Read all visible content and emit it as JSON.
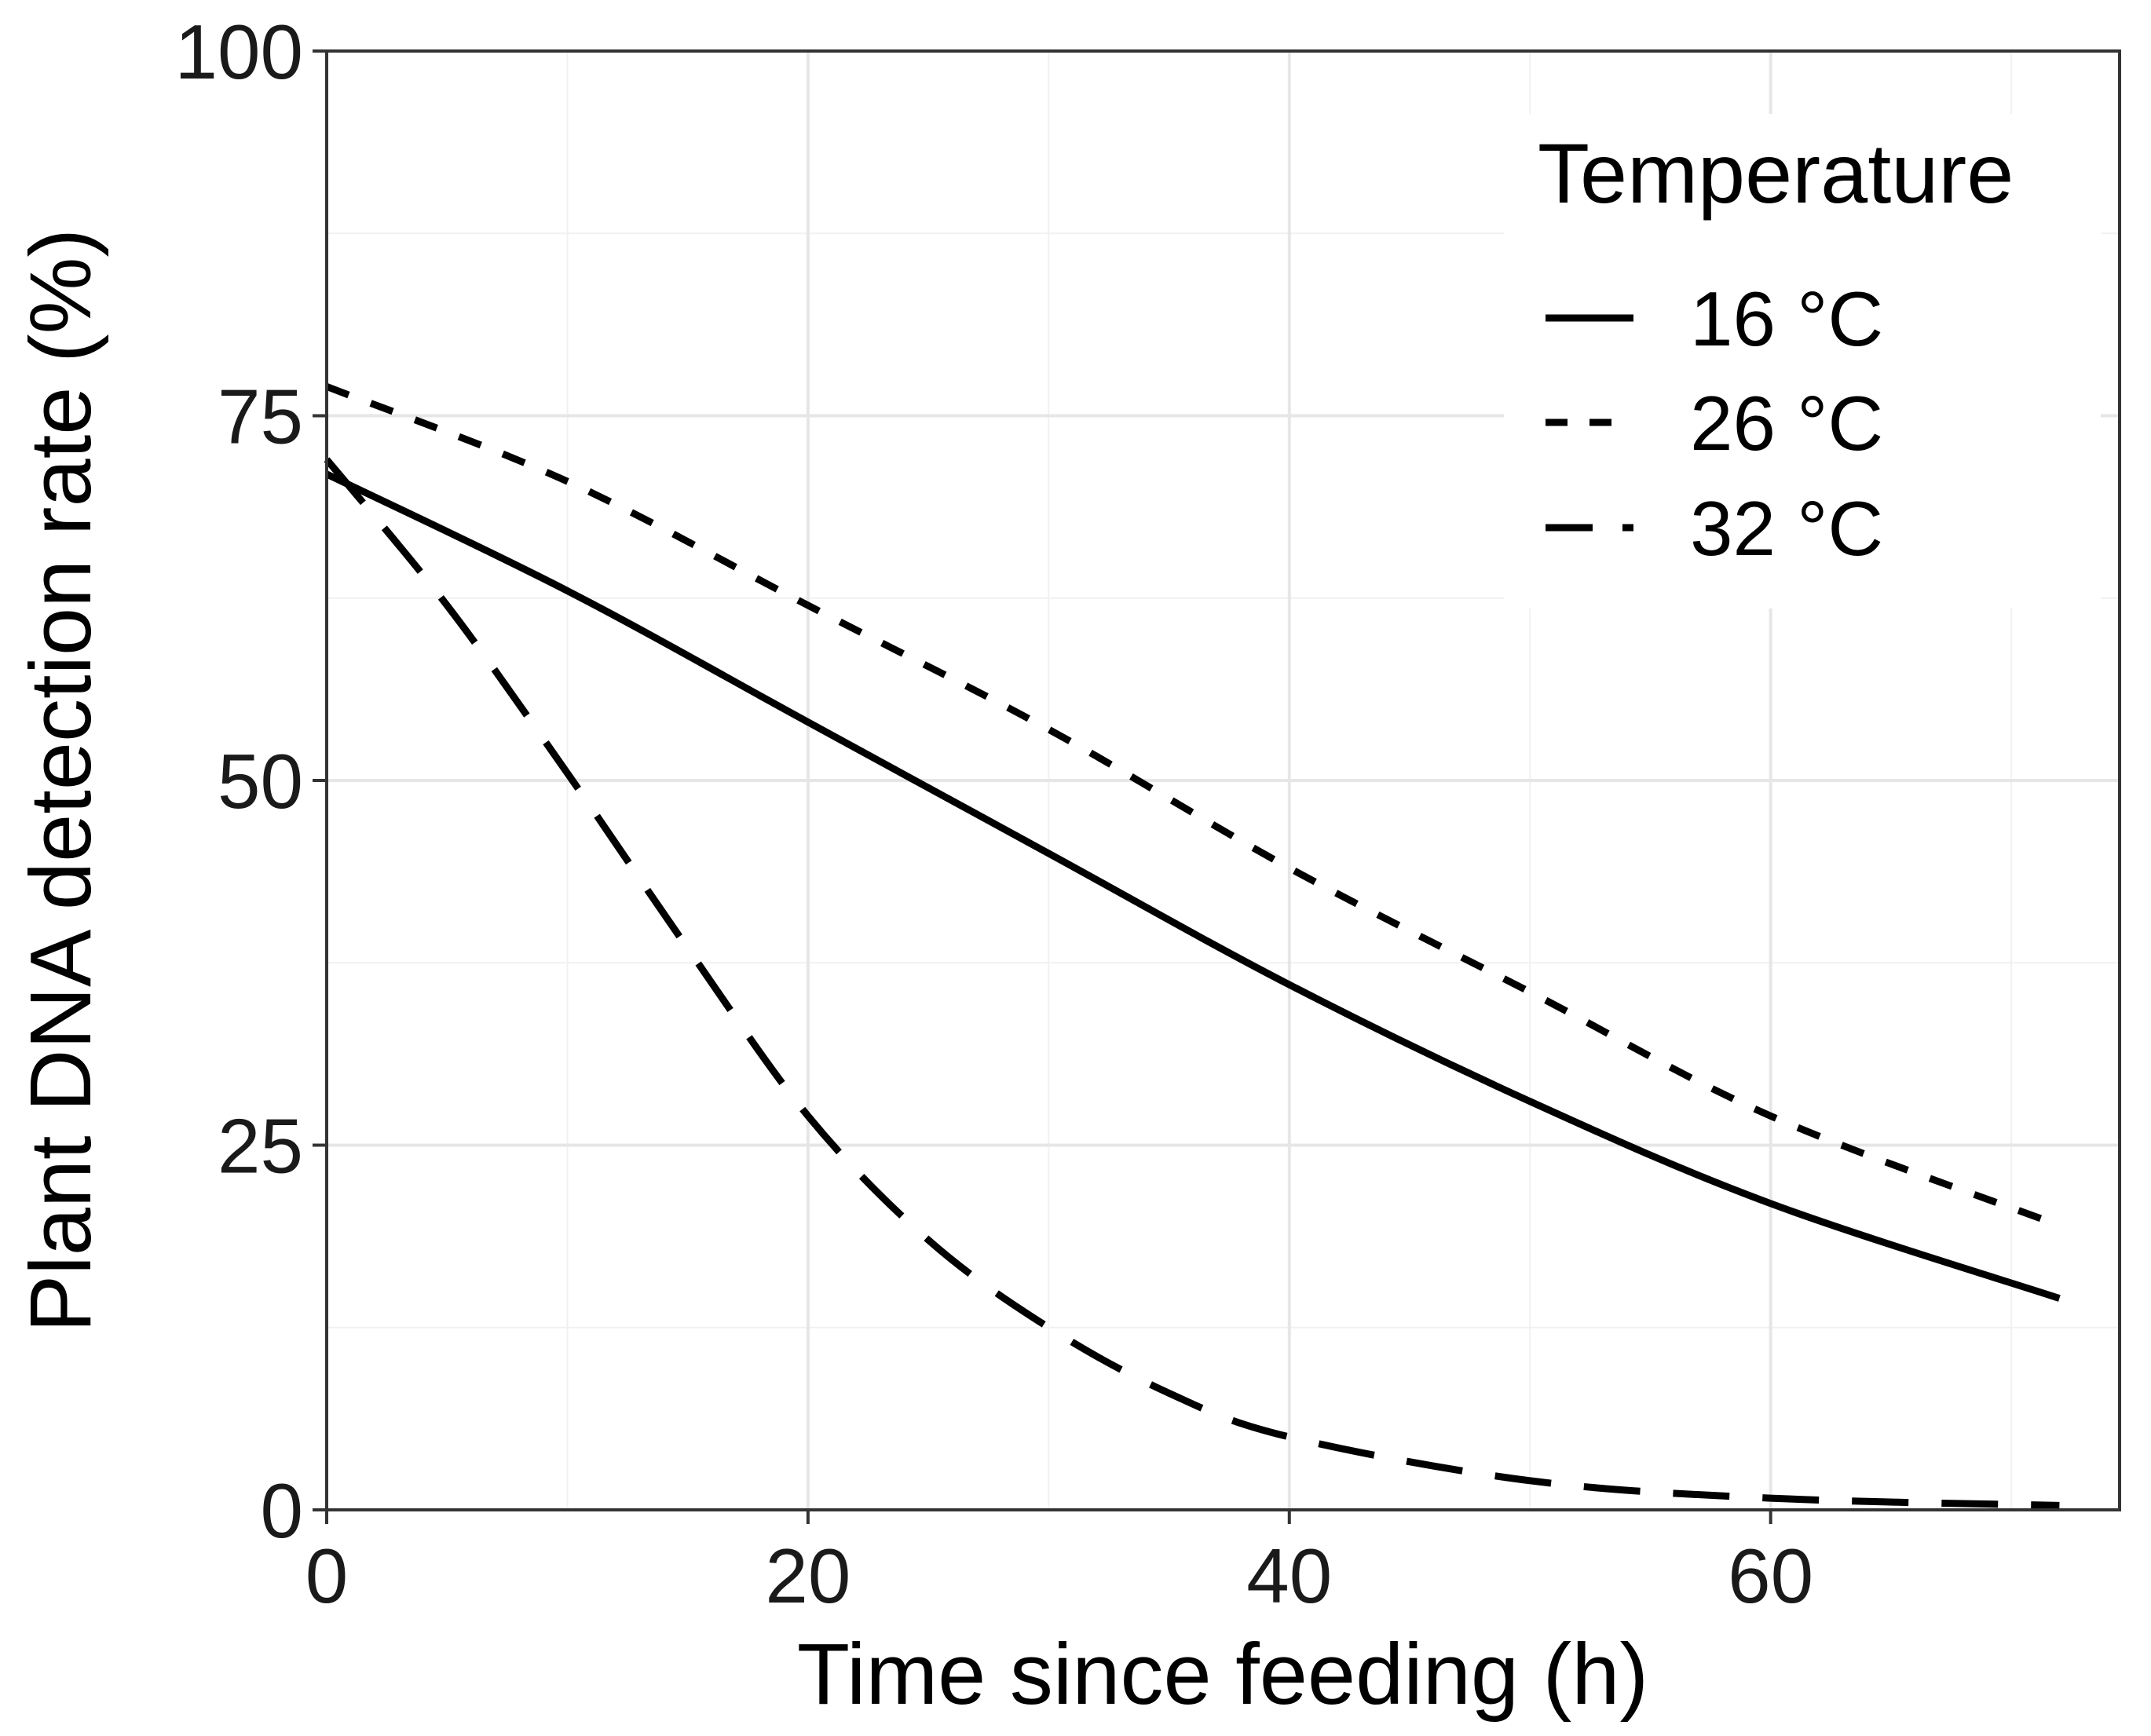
{
  "chart_data": {
    "type": "line",
    "xlabel": "Time since feeding (h)",
    "ylabel": "Plant DNA detection rate (%)",
    "xlim": [
      0,
      74.5
    ],
    "ylim": [
      0,
      100
    ],
    "xticks": [
      0,
      20,
      40,
      60
    ],
    "yticks": [
      0,
      25,
      50,
      75,
      100
    ],
    "x_tick_labels": [
      "0",
      "20",
      "40",
      "60"
    ],
    "y_tick_labels": [
      "0",
      "25",
      "50",
      "75",
      "100"
    ],
    "grid": true,
    "legend_position": "top-right",
    "legend": {
      "title": "Temperature"
    },
    "series": [
      {
        "name": "16 °C",
        "style": "solid",
        "color": "#000000",
        "x": [
          0,
          10,
          20,
          30,
          40,
          50,
          60,
          72
        ],
        "y": [
          71,
          63,
          54,
          45,
          36,
          28,
          21,
          14.5
        ]
      },
      {
        "name": "26 °C",
        "style": "dotted",
        "color": "#000000",
        "x": [
          0,
          10,
          20,
          30,
          40,
          50,
          60,
          72
        ],
        "y": [
          77,
          70.5,
          62,
          53.5,
          44,
          35.5,
          27,
          19.5
        ]
      },
      {
        "name": "32 °C",
        "style": "dashed",
        "color": "#000000",
        "x": [
          0,
          5,
          10,
          15,
          20,
          25,
          30,
          35,
          40,
          50,
          60,
          72
        ],
        "y": [
          72,
          62,
          50.5,
          38.5,
          27,
          18.5,
          12.5,
          8,
          5,
          2,
          0.8,
          0.3
        ]
      }
    ]
  }
}
